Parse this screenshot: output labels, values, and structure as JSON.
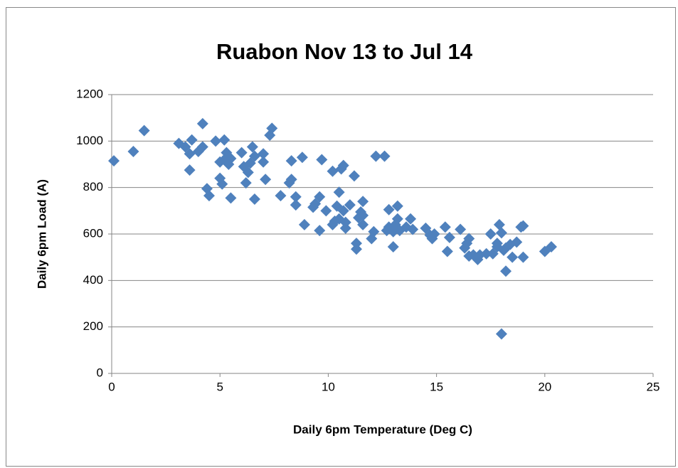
{
  "chart_data": {
    "type": "scatter",
    "title": "Ruabon Nov 13 to Jul 14",
    "x_label": "Daily 6pm Temperature (Deg C)",
    "y_label": "Daily 6pm Load (A)",
    "color": "#4f81bd",
    "grid": true,
    "xlim": [
      0,
      25
    ],
    "xticks": [
      0,
      5,
      10,
      15,
      20,
      25
    ],
    "ylim": [
      0,
      1200
    ],
    "yticks": [
      0,
      200,
      400,
      600,
      800,
      1000,
      1200
    ],
    "x": [
      0.1,
      1,
      1.5,
      3.1,
      3.4,
      3.6,
      3.7,
      3.6,
      4,
      4.2,
      4.2,
      4.4,
      4.5,
      4.8,
      5,
      5.1,
      5,
      5.2,
      5.3,
      5.4,
      5.5,
      5.5,
      5.2,
      6,
      6.1,
      6.2,
      6.3,
      6.4,
      6.5,
      6.6,
      6.6,
      7,
      7,
      7.1,
      7.3,
      7.4,
      7.8,
      8.2,
      8.3,
      8.3,
      8.5,
      8.5,
      8.8,
      8.9,
      9.3,
      9.4,
      9.6,
      9.6,
      9.7,
      9.9,
      10.2,
      10.2,
      10.3,
      10.4,
      10.5,
      10.5,
      10.6,
      10.7,
      10.7,
      10.8,
      10.8,
      11,
      11.2,
      11.3,
      11.3,
      11.4,
      11.5,
      11.6,
      11.6,
      11.6,
      12,
      12.1,
      12.2,
      12.6,
      12.7,
      12.8,
      12.8,
      13,
      13,
      13.1,
      13.2,
      13.2,
      13.3,
      13.6,
      13.8,
      13.9,
      14.5,
      14.7,
      14.8,
      14.9,
      15.4,
      15.5,
      15.6,
      16.1,
      16.3,
      16.4,
      16.5,
      16.5,
      16.7,
      16.9,
      17,
      17.3,
      17.5,
      17.6,
      17.8,
      17.8,
      17.9,
      18,
      18,
      18.1,
      18.2,
      18.2,
      18.4,
      18.5,
      18.7,
      18.9,
      19,
      19,
      20,
      20.3
    ],
    "values": [
      915,
      955,
      1045,
      990,
      975,
      945,
      1005,
      875,
      955,
      975,
      1075,
      795,
      765,
      1000,
      840,
      815,
      910,
      1005,
      950,
      900,
      925,
      755,
      920,
      950,
      890,
      820,
      865,
      905,
      975,
      935,
      750,
      945,
      910,
      835,
      1025,
      1055,
      765,
      820,
      915,
      835,
      760,
      725,
      930,
      640,
      715,
      730,
      760,
      615,
      920,
      700,
      640,
      870,
      655,
      720,
      665,
      780,
      880,
      895,
      700,
      650,
      625,
      725,
      850,
      560,
      535,
      670,
      695,
      740,
      640,
      680,
      580,
      610,
      935,
      935,
      615,
      630,
      705,
      545,
      610,
      640,
      665,
      720,
      615,
      630,
      665,
      620,
      625,
      595,
      580,
      600,
      630,
      525,
      585,
      620,
      540,
      560,
      505,
      580,
      510,
      490,
      510,
      515,
      600,
      515,
      545,
      560,
      640,
      605,
      170,
      530,
      540,
      440,
      555,
      500,
      565,
      630,
      635,
      500,
      525,
      545
    ]
  }
}
